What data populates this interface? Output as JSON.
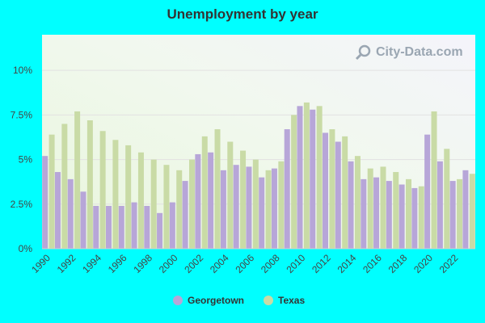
{
  "chart_data": {
    "type": "bar",
    "title": "Unemployment by year",
    "watermark": "City-Data.com",
    "xlabel": "",
    "ylabel": "",
    "ylim": [
      0,
      12
    ],
    "yticks": [
      0,
      2.5,
      5,
      7.5,
      10
    ],
    "ytick_labels": [
      "0%",
      "2.5%",
      "5%",
      "7.5%",
      "10%"
    ],
    "grid": true,
    "legend_position": "bottom",
    "categories": [
      "1990",
      "1991",
      "1992",
      "1993",
      "1994",
      "1995",
      "1996",
      "1997",
      "1998",
      "1999",
      "2000",
      "2001",
      "2002",
      "2003",
      "2004",
      "2005",
      "2006",
      "2007",
      "2008",
      "2009",
      "2010",
      "2011",
      "2012",
      "2013",
      "2014",
      "2015",
      "2016",
      "2017",
      "2018",
      "2019",
      "2020",
      "2021",
      "2022",
      "2023"
    ],
    "xtick_labels": [
      "1990",
      "1992",
      "1994",
      "1996",
      "1998",
      "2000",
      "2002",
      "2004",
      "2006",
      "2008",
      "2010",
      "2012",
      "2014",
      "2016",
      "2018",
      "2020",
      "2022"
    ],
    "series": [
      {
        "name": "Georgetown",
        "color": "#b7a6d8",
        "values": [
          5.2,
          4.3,
          3.9,
          3.2,
          2.4,
          2.4,
          2.4,
          2.6,
          2.4,
          2.0,
          2.6,
          3.8,
          5.3,
          5.4,
          4.4,
          4.7,
          4.6,
          4.0,
          4.5,
          6.7,
          8.0,
          7.8,
          6.5,
          6.0,
          4.9,
          3.9,
          4.0,
          3.8,
          3.6,
          3.4,
          6.4,
          4.9,
          3.8,
          4.4
        ]
      },
      {
        "name": "Texas",
        "color": "#c9dba6",
        "values": [
          6.4,
          7.0,
          7.7,
          7.2,
          6.6,
          6.1,
          5.8,
          5.4,
          5.0,
          4.7,
          4.4,
          5.0,
          6.3,
          6.7,
          6.0,
          5.5,
          5.0,
          4.4,
          4.9,
          7.5,
          8.2,
          8.0,
          6.7,
          6.3,
          5.2,
          4.5,
          4.6,
          4.3,
          3.9,
          3.5,
          7.7,
          5.6,
          3.9,
          4.2
        ]
      }
    ]
  }
}
